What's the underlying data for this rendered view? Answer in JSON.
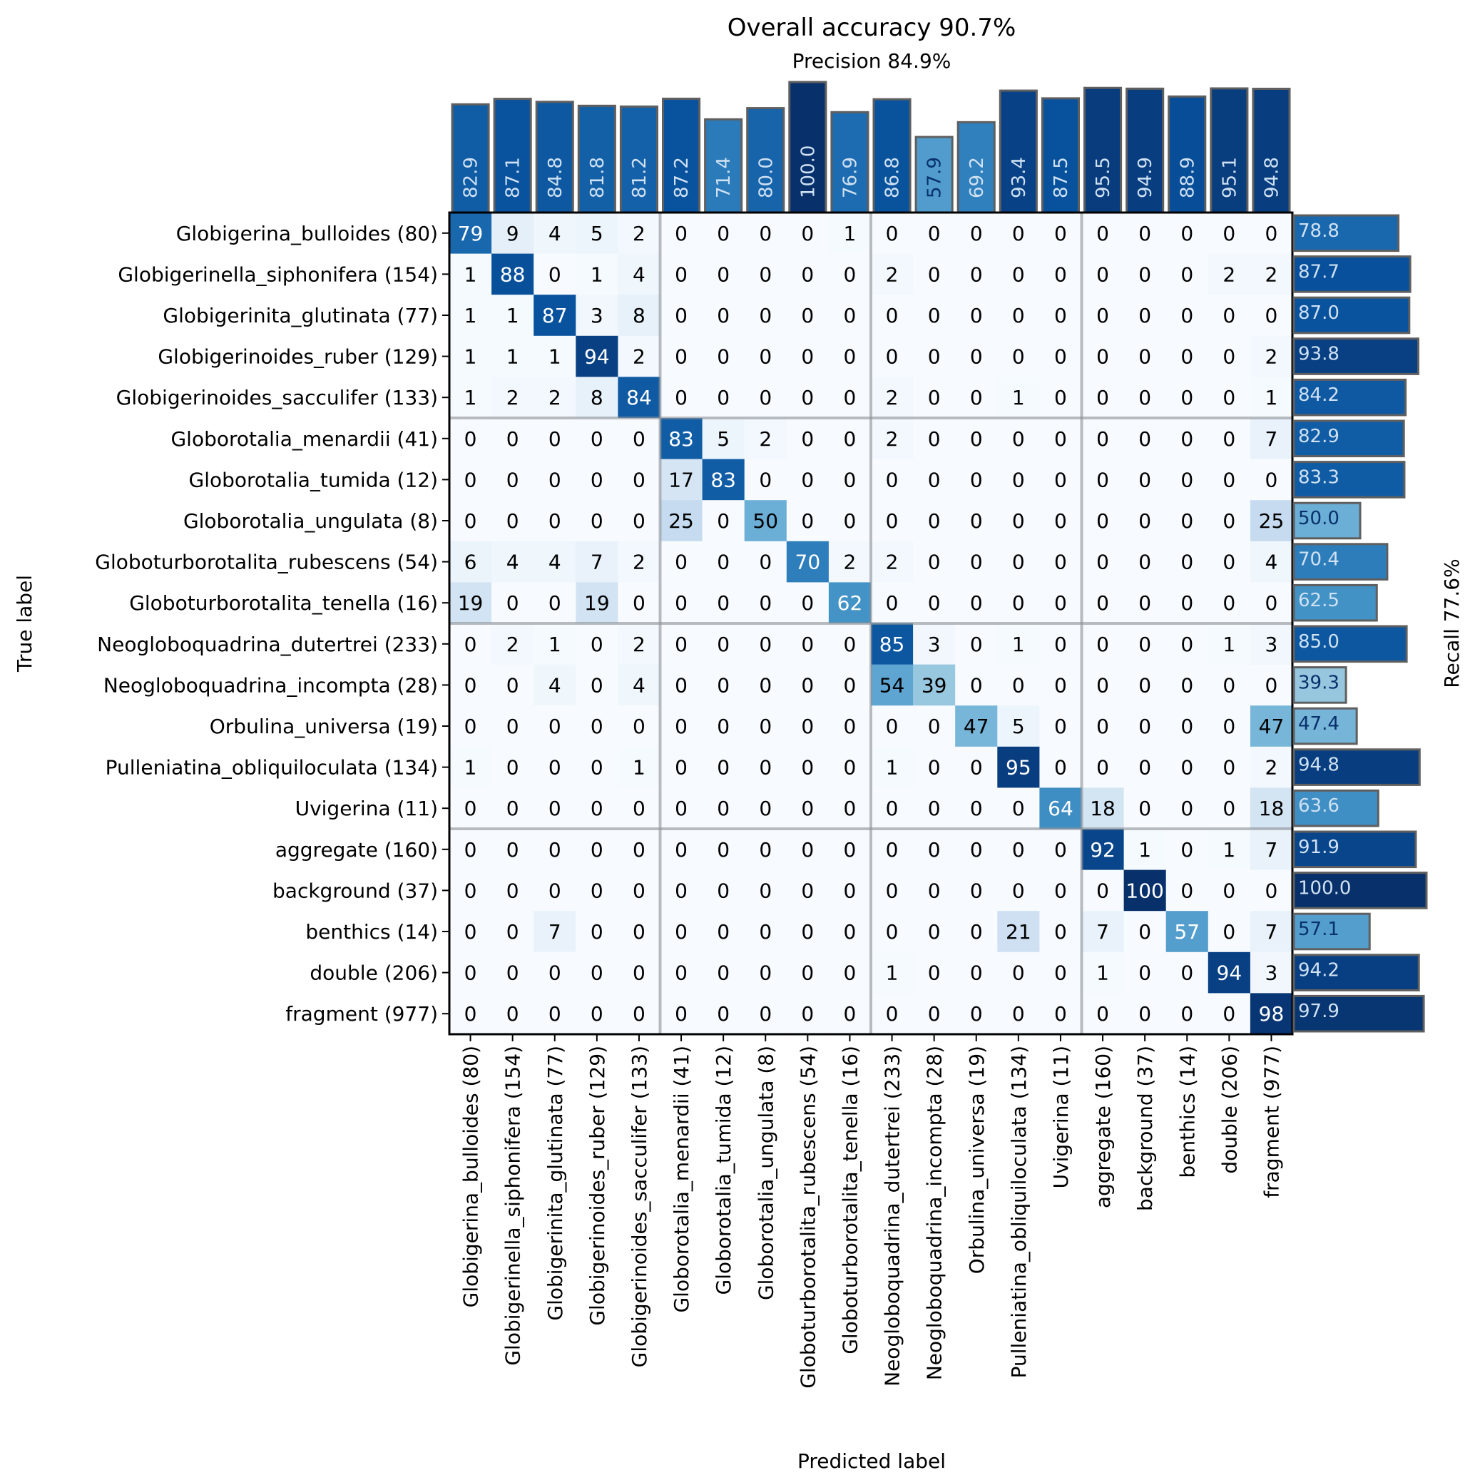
{
  "chart_data": {
    "type": "heatmap",
    "title": "Overall accuracy 90.7%",
    "subtitle": "Precision 84.9%",
    "xlabel": "Predicted label",
    "ylabel": "True label",
    "right_label": "Recall 77.6%",
    "colormap": "Blues",
    "value_range": [
      0,
      100
    ],
    "group_boundaries": [
      5,
      10,
      15
    ],
    "labels": [
      "Globigerina_bulloides (80)",
      "Globigerinella_siphonifera (154)",
      "Globigerinita_glutinata (77)",
      "Globigerinoides_ruber (129)",
      "Globigerinoides_sacculifer (133)",
      "Globorotalia_menardii (41)",
      "Globorotalia_tumida (12)",
      "Globorotalia_ungulata (8)",
      "Globoturborotalita_rubescens (54)",
      "Globoturborotalita_tenella (16)",
      "Neogloboquadrina_dutertrei (233)",
      "Neogloboquadrina_incompta (28)",
      "Orbulina_universa (19)",
      "Pulleniatina_obliquiloculata (134)",
      "Uvigerina (11)",
      "aggregate (160)",
      "background (37)",
      "benthics (14)",
      "double (206)",
      "fragment (977)"
    ],
    "matrix": [
      [
        79,
        9,
        4,
        5,
        2,
        0,
        0,
        0,
        0,
        1,
        0,
        0,
        0,
        0,
        0,
        0,
        0,
        0,
        0,
        0
      ],
      [
        1,
        88,
        0,
        1,
        4,
        0,
        0,
        0,
        0,
        0,
        2,
        0,
        0,
        0,
        0,
        0,
        0,
        0,
        2,
        2
      ],
      [
        1,
        1,
        87,
        3,
        8,
        0,
        0,
        0,
        0,
        0,
        0,
        0,
        0,
        0,
        0,
        0,
        0,
        0,
        0,
        0
      ],
      [
        1,
        1,
        1,
        94,
        2,
        0,
        0,
        0,
        0,
        0,
        0,
        0,
        0,
        0,
        0,
        0,
        0,
        0,
        0,
        2
      ],
      [
        1,
        2,
        2,
        8,
        84,
        0,
        0,
        0,
        0,
        0,
        2,
        0,
        0,
        1,
        0,
        0,
        0,
        0,
        0,
        1
      ],
      [
        0,
        0,
        0,
        0,
        0,
        83,
        5,
        2,
        0,
        0,
        2,
        0,
        0,
        0,
        0,
        0,
        0,
        0,
        0,
        7
      ],
      [
        0,
        0,
        0,
        0,
        0,
        17,
        83,
        0,
        0,
        0,
        0,
        0,
        0,
        0,
        0,
        0,
        0,
        0,
        0,
        0
      ],
      [
        0,
        0,
        0,
        0,
        0,
        25,
        0,
        50,
        0,
        0,
        0,
        0,
        0,
        0,
        0,
        0,
        0,
        0,
        0,
        25
      ],
      [
        6,
        4,
        4,
        7,
        2,
        0,
        0,
        0,
        70,
        2,
        2,
        0,
        0,
        0,
        0,
        0,
        0,
        0,
        0,
        4
      ],
      [
        19,
        0,
        0,
        19,
        0,
        0,
        0,
        0,
        0,
        62,
        0,
        0,
        0,
        0,
        0,
        0,
        0,
        0,
        0,
        0
      ],
      [
        0,
        2,
        1,
        0,
        2,
        0,
        0,
        0,
        0,
        0,
        85,
        3,
        0,
        1,
        0,
        0,
        0,
        0,
        1,
        3
      ],
      [
        0,
        0,
        4,
        0,
        4,
        0,
        0,
        0,
        0,
        0,
        54,
        39,
        0,
        0,
        0,
        0,
        0,
        0,
        0,
        0
      ],
      [
        0,
        0,
        0,
        0,
        0,
        0,
        0,
        0,
        0,
        0,
        0,
        0,
        47,
        5,
        0,
        0,
        0,
        0,
        0,
        47
      ],
      [
        1,
        0,
        0,
        0,
        1,
        0,
        0,
        0,
        0,
        0,
        1,
        0,
        0,
        95,
        0,
        0,
        0,
        0,
        0,
        2
      ],
      [
        0,
        0,
        0,
        0,
        0,
        0,
        0,
        0,
        0,
        0,
        0,
        0,
        0,
        0,
        64,
        18,
        0,
        0,
        0,
        18
      ],
      [
        0,
        0,
        0,
        0,
        0,
        0,
        0,
        0,
        0,
        0,
        0,
        0,
        0,
        0,
        0,
        92,
        1,
        0,
        1,
        7
      ],
      [
        0,
        0,
        0,
        0,
        0,
        0,
        0,
        0,
        0,
        0,
        0,
        0,
        0,
        0,
        0,
        0,
        100,
        0,
        0,
        0
      ],
      [
        0,
        0,
        7,
        0,
        0,
        0,
        0,
        0,
        0,
        0,
        0,
        0,
        0,
        21,
        0,
        7,
        0,
        57,
        0,
        7
      ],
      [
        0,
        0,
        0,
        0,
        0,
        0,
        0,
        0,
        0,
        0,
        1,
        0,
        0,
        0,
        0,
        1,
        0,
        0,
        94,
        3
      ],
      [
        0,
        0,
        0,
        0,
        0,
        0,
        0,
        0,
        0,
        0,
        0,
        0,
        0,
        0,
        0,
        0,
        0,
        0,
        0,
        98
      ]
    ],
    "precision": [
      82.9,
      87.1,
      84.8,
      81.8,
      81.2,
      87.2,
      71.4,
      80.0,
      100.0,
      76.9,
      86.8,
      57.9,
      69.2,
      93.4,
      87.5,
      95.5,
      94.9,
      88.9,
      95.1,
      94.8
    ],
    "recall": [
      78.8,
      87.7,
      87.0,
      93.8,
      84.2,
      82.9,
      83.3,
      50.0,
      70.4,
      62.5,
      85.0,
      39.3,
      47.4,
      94.8,
      63.6,
      91.9,
      100.0,
      57.1,
      94.2,
      97.9
    ]
  }
}
